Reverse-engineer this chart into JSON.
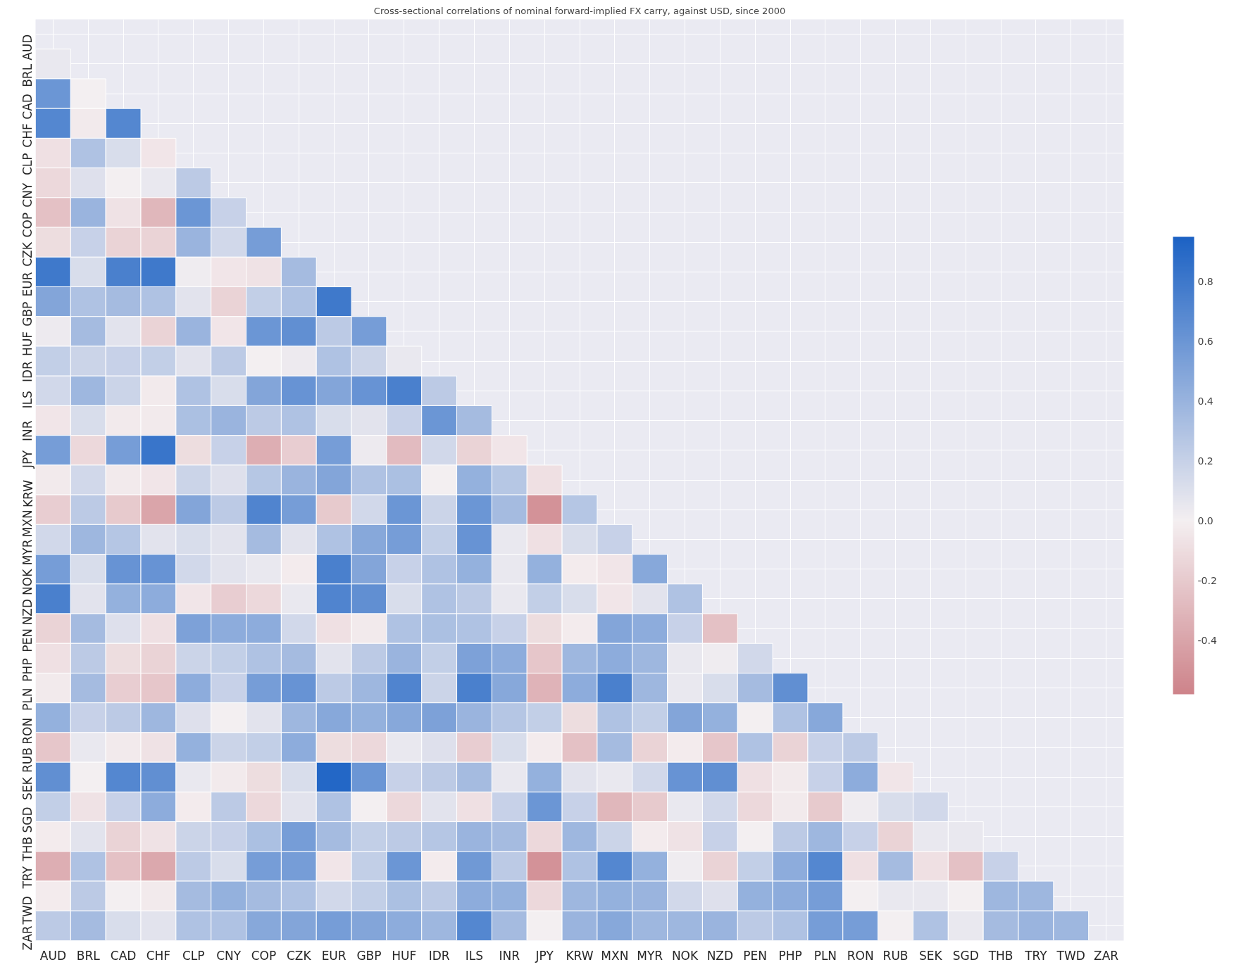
{
  "chart_data": {
    "type": "heatmap",
    "title": "Cross-sectional correlations of nominal forward-implied FX carry, against USD, since 2000",
    "categories": [
      "AUD",
      "BRL",
      "CAD",
      "CHF",
      "CLP",
      "CNY",
      "COP",
      "CZK",
      "EUR",
      "GBP",
      "HUF",
      "IDR",
      "ILS",
      "INR",
      "JPY",
      "KRW",
      "MXN",
      "MYR",
      "NOK",
      "NZD",
      "PEN",
      "PHP",
      "PLN",
      "RON",
      "RUB",
      "SEK",
      "SGD",
      "THB",
      "TRY",
      "TWD",
      "ZAR"
    ],
    "y_categories": [
      "AUD",
      "BRL",
      "CAD",
      "CHF",
      "CLP",
      "CNY",
      "COP",
      "CZK",
      "EUR",
      "GBP",
      "HUF",
      "IDR",
      "ILS",
      "INR",
      "JPY",
      "KRW",
      "MXN",
      "MYR",
      "NOK",
      "NZD",
      "PEN",
      "PHP",
      "PLN",
      "RON",
      "RUB",
      "SEK",
      "SGD",
      "THB",
      "TRY",
      "TWD",
      "ZAR"
    ],
    "cells": [
      [
        null,
        null,
        null,
        null,
        null,
        null,
        null,
        null,
        null,
        null,
        null,
        null,
        null,
        null,
        null,
        null,
        null,
        null,
        null,
        null,
        null,
        null,
        null,
        null,
        null,
        null,
        null,
        null,
        null,
        null,
        null
      ],
      [
        0.05,
        null,
        null,
        null,
        null,
        null,
        null,
        null,
        null,
        null,
        null,
        null,
        null,
        null,
        null,
        null,
        null,
        null,
        null,
        null,
        null,
        null,
        null,
        null,
        null,
        null,
        null,
        null,
        null,
        null,
        null
      ],
      [
        0.6,
        0.0,
        null,
        null,
        null,
        null,
        null,
        null,
        null,
        null,
        null,
        null,
        null,
        null,
        null,
        null,
        null,
        null,
        null,
        null,
        null,
        null,
        null,
        null,
        null,
        null,
        null,
        null,
        null,
        null,
        null
      ],
      [
        0.7,
        -0.03,
        0.7,
        null,
        null,
        null,
        null,
        null,
        null,
        null,
        null,
        null,
        null,
        null,
        null,
        null,
        null,
        null,
        null,
        null,
        null,
        null,
        null,
        null,
        null,
        null,
        null,
        null,
        null,
        null,
        null
      ],
      [
        -0.08,
        0.3,
        0.12,
        -0.05,
        null,
        null,
        null,
        null,
        null,
        null,
        null,
        null,
        null,
        null,
        null,
        null,
        null,
        null,
        null,
        null,
        null,
        null,
        null,
        null,
        null,
        null,
        null,
        null,
        null,
        null,
        null
      ],
      [
        -0.12,
        0.1,
        0.0,
        0.05,
        0.25,
        null,
        null,
        null,
        null,
        null,
        null,
        null,
        null,
        null,
        null,
        null,
        null,
        null,
        null,
        null,
        null,
        null,
        null,
        null,
        null,
        null,
        null,
        null,
        null,
        null,
        null
      ],
      [
        -0.25,
        0.4,
        -0.07,
        -0.3,
        0.6,
        0.2,
        null,
        null,
        null,
        null,
        null,
        null,
        null,
        null,
        null,
        null,
        null,
        null,
        null,
        null,
        null,
        null,
        null,
        null,
        null,
        null,
        null,
        null,
        null,
        null,
        null
      ],
      [
        -0.1,
        0.2,
        -0.15,
        -0.15,
        0.4,
        0.15,
        0.55,
        null,
        null,
        null,
        null,
        null,
        null,
        null,
        null,
        null,
        null,
        null,
        null,
        null,
        null,
        null,
        null,
        null,
        null,
        null,
        null,
        null,
        null,
        null,
        null
      ],
      [
        0.8,
        0.12,
        0.75,
        0.8,
        0.02,
        -0.05,
        -0.07,
        0.35,
        null,
        null,
        null,
        null,
        null,
        null,
        null,
        null,
        null,
        null,
        null,
        null,
        null,
        null,
        null,
        null,
        null,
        null,
        null,
        null,
        null,
        null,
        null
      ],
      [
        0.5,
        0.3,
        0.35,
        0.3,
        0.08,
        -0.15,
        0.22,
        0.3,
        0.8,
        null,
        null,
        null,
        null,
        null,
        null,
        null,
        null,
        null,
        null,
        null,
        null,
        null,
        null,
        null,
        null,
        null,
        null,
        null,
        null,
        null,
        null
      ],
      [
        0.03,
        0.35,
        0.08,
        -0.15,
        0.4,
        -0.05,
        0.6,
        0.65,
        0.25,
        0.55,
        null,
        null,
        null,
        null,
        null,
        null,
        null,
        null,
        null,
        null,
        null,
        null,
        null,
        null,
        null,
        null,
        null,
        null,
        null,
        null,
        null
      ],
      [
        0.22,
        0.18,
        0.2,
        0.22,
        0.08,
        0.25,
        0.0,
        0.03,
        0.3,
        0.18,
        0.05,
        null,
        null,
        null,
        null,
        null,
        null,
        null,
        null,
        null,
        null,
        null,
        null,
        null,
        null,
        null,
        null,
        null,
        null,
        null,
        null
      ],
      [
        0.15,
        0.38,
        0.18,
        -0.03,
        0.3,
        0.12,
        0.5,
        0.62,
        0.5,
        0.62,
        0.75,
        0.25,
        null,
        null,
        null,
        null,
        null,
        null,
        null,
        null,
        null,
        null,
        null,
        null,
        null,
        null,
        null,
        null,
        null,
        null,
        null
      ],
      [
        -0.05,
        0.12,
        -0.03,
        -0.03,
        0.32,
        0.4,
        0.25,
        0.3,
        0.12,
        0.08,
        0.2,
        0.6,
        0.35,
        null,
        null,
        null,
        null,
        null,
        null,
        null,
        null,
        null,
        null,
        null,
        null,
        null,
        null,
        null,
        null,
        null,
        null
      ],
      [
        0.55,
        -0.12,
        0.55,
        0.82,
        -0.1,
        0.2,
        -0.35,
        -0.18,
        0.55,
        0.03,
        -0.28,
        0.15,
        -0.15,
        -0.05,
        null,
        null,
        null,
        null,
        null,
        null,
        null,
        null,
        null,
        null,
        null,
        null,
        null,
        null,
        null,
        null,
        null
      ],
      [
        -0.03,
        0.15,
        -0.03,
        -0.05,
        0.18,
        0.1,
        0.27,
        0.4,
        0.5,
        0.3,
        0.32,
        0.0,
        0.42,
        0.27,
        -0.08,
        null,
        null,
        null,
        null,
        null,
        null,
        null,
        null,
        null,
        null,
        null,
        null,
        null,
        null,
        null,
        null
      ],
      [
        -0.18,
        0.25,
        -0.2,
        -0.4,
        0.5,
        0.25,
        0.72,
        0.55,
        -0.2,
        0.15,
        0.6,
        0.18,
        0.6,
        0.35,
        -0.5,
        0.28,
        null,
        null,
        null,
        null,
        null,
        null,
        null,
        null,
        null,
        null,
        null,
        null,
        null,
        null,
        null
      ],
      [
        0.15,
        0.38,
        0.28,
        0.08,
        0.12,
        0.08,
        0.35,
        0.08,
        0.3,
        0.48,
        0.55,
        0.22,
        0.62,
        0.05,
        -0.08,
        0.12,
        0.2,
        null,
        null,
        null,
        null,
        null,
        null,
        null,
        null,
        null,
        null,
        null,
        null,
        null,
        null
      ],
      [
        0.55,
        0.12,
        0.62,
        0.62,
        0.15,
        0.08,
        0.05,
        -0.02,
        0.75,
        0.5,
        0.2,
        0.3,
        0.42,
        0.05,
        0.42,
        -0.02,
        -0.05,
        0.48,
        null,
        null,
        null,
        null,
        null,
        null,
        null,
        null,
        null,
        null,
        null,
        null,
        null
      ],
      [
        0.75,
        0.08,
        0.42,
        0.45,
        -0.05,
        -0.18,
        -0.12,
        0.05,
        0.72,
        0.65,
        0.12,
        0.3,
        0.25,
        0.05,
        0.22,
        0.12,
        -0.05,
        0.08,
        0.3,
        null,
        null,
        null,
        null,
        null,
        null,
        null,
        null,
        null,
        null,
        null,
        null
      ],
      [
        -0.15,
        0.35,
        0.1,
        -0.08,
        0.52,
        0.45,
        0.45,
        0.15,
        -0.08,
        -0.03,
        0.3,
        0.32,
        0.3,
        0.2,
        -0.1,
        -0.02,
        0.5,
        0.45,
        0.2,
        -0.25,
        null,
        null,
        null,
        null,
        null,
        null,
        null,
        null,
        null,
        null,
        null
      ],
      [
        -0.08,
        0.25,
        -0.1,
        -0.15,
        0.18,
        0.22,
        0.3,
        0.35,
        0.08,
        0.25,
        0.4,
        0.22,
        0.52,
        0.45,
        -0.22,
        0.38,
        0.45,
        0.38,
        0.05,
        0.02,
        0.15,
        null,
        null,
        null,
        null,
        null,
        null,
        null,
        null,
        null,
        null
      ],
      [
        -0.03,
        0.35,
        -0.18,
        -0.22,
        0.45,
        0.2,
        0.55,
        0.62,
        0.25,
        0.38,
        0.72,
        0.18,
        0.75,
        0.48,
        -0.32,
        0.45,
        0.75,
        0.38,
        0.05,
        0.12,
        0.35,
        0.65,
        null,
        null,
        null,
        null,
        null,
        null,
        null,
        null,
        null
      ],
      [
        0.42,
        0.2,
        0.25,
        0.38,
        0.1,
        0.0,
        0.08,
        0.38,
        0.48,
        0.42,
        0.48,
        0.52,
        0.4,
        0.28,
        0.22,
        -0.1,
        0.3,
        0.22,
        0.5,
        0.42,
        0.0,
        0.3,
        0.48,
        null,
        null,
        null,
        null,
        null,
        null,
        null,
        null
      ],
      [
        -0.22,
        0.05,
        -0.03,
        -0.07,
        0.42,
        0.18,
        0.22,
        0.45,
        -0.1,
        -0.12,
        0.05,
        0.1,
        -0.18,
        0.12,
        -0.02,
        -0.25,
        0.35,
        -0.15,
        -0.02,
        -0.22,
        0.3,
        -0.15,
        0.2,
        0.25,
        null,
        null,
        null,
        null,
        null,
        null,
        null
      ],
      [
        0.65,
        0.0,
        0.7,
        0.65,
        0.05,
        -0.03,
        -0.1,
        0.12,
        0.92,
        0.6,
        0.2,
        0.25,
        0.35,
        0.05,
        0.42,
        0.08,
        0.05,
        0.15,
        0.62,
        0.65,
        -0.08,
        -0.03,
        0.2,
        0.45,
        -0.05,
        null,
        null,
        null,
        null,
        null,
        null
      ],
      [
        0.22,
        -0.07,
        0.2,
        0.45,
        -0.02,
        0.25,
        -0.12,
        0.08,
        0.3,
        0.0,
        -0.12,
        0.08,
        -0.08,
        0.2,
        0.6,
        0.2,
        -0.3,
        -0.2,
        0.05,
        0.15,
        -0.12,
        -0.03,
        -0.2,
        0.02,
        0.12,
        0.15,
        null,
        null,
        null,
        null,
        null
      ],
      [
        -0.02,
        0.08,
        -0.15,
        -0.07,
        0.18,
        0.2,
        0.32,
        0.55,
        0.35,
        0.22,
        0.25,
        0.28,
        0.4,
        0.35,
        -0.12,
        0.38,
        0.18,
        -0.02,
        -0.07,
        0.2,
        0.0,
        0.25,
        0.38,
        0.2,
        -0.15,
        0.05,
        0.05,
        null,
        null,
        null,
        null
      ],
      [
        -0.35,
        0.3,
        -0.25,
        -0.38,
        0.25,
        0.12,
        0.55,
        0.55,
        -0.05,
        0.22,
        0.6,
        -0.02,
        0.58,
        0.25,
        -0.5,
        0.3,
        0.7,
        0.42,
        0.02,
        -0.15,
        0.22,
        0.45,
        0.7,
        -0.08,
        0.35,
        -0.08,
        -0.25,
        0.2,
        null,
        null,
        null
      ],
      [
        -0.02,
        0.25,
        0.0,
        -0.03,
        0.35,
        0.42,
        0.35,
        0.3,
        0.15,
        0.22,
        0.32,
        0.25,
        0.45,
        0.42,
        -0.12,
        0.38,
        0.42,
        0.4,
        0.15,
        0.1,
        0.42,
        0.45,
        0.55,
        0.0,
        0.05,
        0.05,
        0.0,
        0.38,
        0.38,
        null,
        null
      ],
      [
        0.25,
        0.35,
        0.12,
        0.08,
        0.3,
        0.3,
        0.48,
        0.5,
        0.55,
        0.5,
        0.45,
        0.38,
        0.7,
        0.35,
        0.0,
        0.4,
        0.48,
        0.38,
        0.38,
        0.4,
        0.25,
        0.3,
        0.55,
        0.55,
        0.0,
        0.3,
        0.05,
        0.35,
        0.4,
        0.38,
        null
      ]
    ],
    "clim": [
      -0.58,
      0.95
    ],
    "cticks": [
      -0.4,
      -0.2,
      {
        "value": 0,
        "label": "0.0"
      },
      0.2,
      0.4,
      0.6,
      0.8
    ],
    "grid": true
  }
}
